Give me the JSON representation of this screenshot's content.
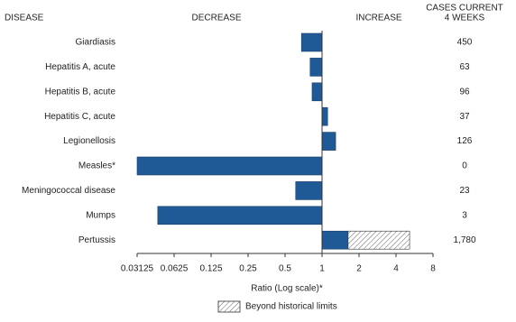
{
  "chart_data": {
    "type": "bar",
    "orientation": "horizontal",
    "log_scale": true,
    "log_base": 2,
    "headers": {
      "disease": "DISEASE",
      "decrease": "DECREASE",
      "increase": "INCREASE",
      "cases": [
        "CASES CURRENT",
        "4 WEEKS"
      ]
    },
    "categories": [
      "Giardiasis",
      "Hepatitis A, acute",
      "Hepatitis B, acute",
      "Hepatitis C, acute",
      "Legionellosis",
      "Measles*",
      "Meningococcal disease",
      "Mumps",
      "Pertussis"
    ],
    "values": [
      0.68,
      0.8,
      0.83,
      1.11,
      1.29,
      0.03125,
      0.61,
      0.046,
      5.16
    ],
    "historical_limits": [
      null,
      null,
      null,
      null,
      null,
      null,
      null,
      null,
      1.63
    ],
    "cases": [
      "450",
      "63",
      "96",
      "37",
      "126",
      "0",
      "23",
      "3",
      "1,780"
    ],
    "color": "#1f5a96",
    "xlim": [
      0.03125,
      8
    ],
    "xticks": [
      0.03125,
      0.0625,
      0.125,
      0.25,
      0.5,
      1,
      2,
      4,
      8
    ],
    "x_label": "Ratio (Log scale)*",
    "legend": "Beyond historical limits"
  }
}
